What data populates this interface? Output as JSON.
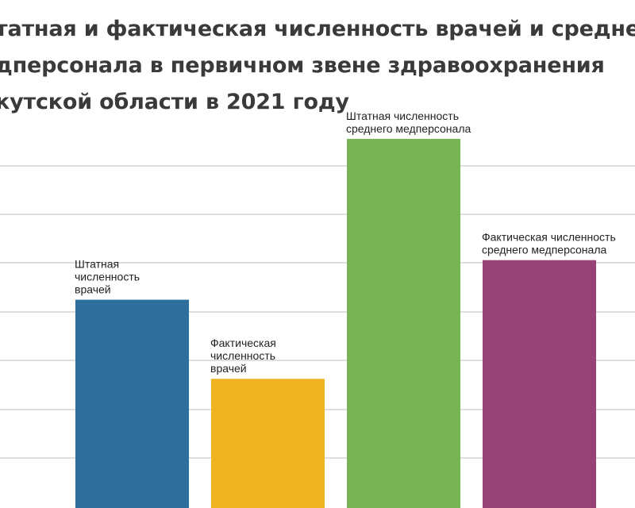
{
  "title_lines": [
    "татная и фактическая численность врачей и средне",
    "дперсонала в первичном звене здравоохранения",
    "кутской области в 2021 году"
  ],
  "chart_data": {
    "type": "bar",
    "title": "татная и фактическая численность врачей и средне дперсонала в первичном звене здравоохранения кутской области в 2021 году",
    "categories": [
      "Штатная численность врачей",
      "Фактическая численность врачей",
      "Штатная численность среднего медперсонала",
      "Фактическая численность среднего медперсонала"
    ],
    "label_lines": [
      [
        "Штатная",
        "численность",
        "врачей"
      ],
      [
        "Фактическая",
        "численность",
        "врачей"
      ],
      [
        "Штатная численность",
        "среднего медперсонала"
      ],
      [
        "Фактическая численность",
        "среднего медперсонала"
      ]
    ],
    "values": [
      3.95,
      2.45,
      7.0,
      4.7
    ],
    "colors": [
      "#2e6e9c",
      "#efb321",
      "#78b453",
      "#984376"
    ],
    "ylim": [
      0,
      7.3
    ],
    "grid": true,
    "xlabel": "",
    "ylabel": ""
  }
}
